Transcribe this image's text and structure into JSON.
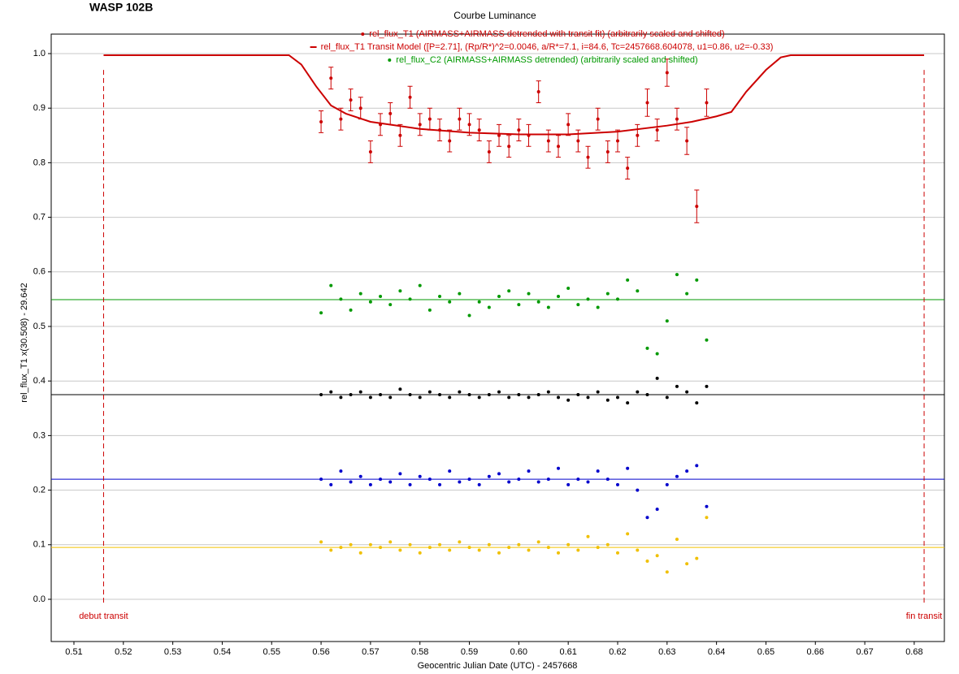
{
  "chart_data": {
    "type": "scatter",
    "title": "WASP 102B",
    "subtitle": "Courbe Luminance",
    "x_label": "Geocentric Julian Date (UTC) - 2457668",
    "y_label": "rel_flux_T1 x(30.508) - 29.642",
    "xlim": [
      0.5054,
      0.6861
    ],
    "ylim": [
      -0.0774,
      1.0357
    ],
    "xticks": [
      0.51,
      0.52,
      0.53,
      0.54,
      0.55,
      0.56,
      0.57,
      0.58,
      0.59,
      {
        "value": 0.6,
        "label": "0.60"
      },
      0.61,
      0.62,
      0.63,
      0.64,
      0.65,
      0.66,
      0.67,
      0.68
    ],
    "yticks": [
      {
        "value": 0,
        "label": "0.0"
      },
      0.1,
      0.2,
      0.3,
      0.4,
      0.5,
      0.6,
      0.7,
      0.8,
      0.9,
      {
        "value": 1,
        "label": "1.0"
      }
    ],
    "grid": true,
    "legend": "top",
    "x": [
      0.56,
      0.562,
      0.564,
      0.566,
      0.568,
      0.57,
      0.572,
      0.574,
      0.576,
      0.578,
      0.58,
      0.582,
      0.584,
      0.586,
      0.588,
      0.59,
      0.592,
      0.594,
      0.596,
      0.598,
      0.6,
      0.602,
      0.604,
      0.606,
      0.608,
      0.61,
      0.612,
      0.614,
      0.616,
      0.618,
      0.62,
      0.622,
      0.624,
      0.626,
      0.628,
      0.63,
      0.632,
      0.634,
      0.636,
      0.638
    ],
    "series": [
      {
        "name": "rel_flux_T1 (AIRMASS+AIRMASS detrended with transit fit) (arbitrarily scaled and shifted)",
        "color": "#cc0000",
        "style": "errorbar",
        "values": [
          0.875,
          0.955,
          0.88,
          0.915,
          0.9,
          0.82,
          0.87,
          0.89,
          0.85,
          0.92,
          0.87,
          0.88,
          0.86,
          0.84,
          0.88,
          0.87,
          0.86,
          0.82,
          0.85,
          0.83,
          0.86,
          0.85,
          0.93,
          0.84,
          0.83,
          0.87,
          0.84,
          0.81,
          0.88,
          0.82,
          0.84,
          0.79,
          0.85,
          0.91,
          0.86,
          0.965,
          0.88,
          0.84,
          0.72,
          0.91
        ],
        "errors": [
          0.02,
          0.02,
          0.02,
          0.02,
          0.02,
          0.02,
          0.02,
          0.02,
          0.02,
          0.02,
          0.02,
          0.02,
          0.02,
          0.02,
          0.02,
          0.02,
          0.02,
          0.02,
          0.02,
          0.02,
          0.02,
          0.02,
          0.02,
          0.02,
          0.02,
          0.02,
          0.02,
          0.02,
          0.02,
          0.02,
          0.02,
          0.02,
          0.02,
          0.025,
          0.02,
          0.025,
          0.02,
          0.025,
          0.03,
          0.025
        ]
      },
      {
        "name": "rel_flux_T1 Transit Model ([P=2.71], (Rp/R*)^2=0.0046, a/R*=7.1, i=84.6, Tc=2457668.604078, u1=0.86, u2=-0.33)",
        "color": "#cc0000",
        "style": "line",
        "x": [
          0.516,
          0.5535,
          0.556,
          0.559,
          0.562,
          0.565,
          0.57,
          0.58,
          0.59,
          0.6,
          0.61,
          0.62,
          0.63,
          0.635,
          0.64,
          0.643,
          0.646,
          0.65,
          0.653,
          0.655,
          0.682
        ],
        "values": [
          0.997,
          0.997,
          0.98,
          0.94,
          0.905,
          0.89,
          0.875,
          0.862,
          0.855,
          0.852,
          0.852,
          0.857,
          0.868,
          0.875,
          0.885,
          0.893,
          0.93,
          0.97,
          0.993,
          0.997,
          0.997
        ]
      },
      {
        "name": "rel_flux_C2 (AIRMASS+AIRMASS detrended) (arbitrarily scaled and shifted)",
        "color": "#009900",
        "style": "point",
        "values": [
          0.525,
          0.575,
          0.55,
          0.53,
          0.56,
          0.545,
          0.555,
          0.54,
          0.565,
          0.55,
          0.575,
          0.53,
          0.555,
          0.545,
          0.56,
          0.52,
          0.545,
          0.535,
          0.555,
          0.565,
          0.54,
          0.56,
          0.545,
          0.535,
          0.555,
          0.57,
          0.54,
          0.55,
          0.535,
          0.56,
          0.55,
          0.585,
          0.565,
          0.46,
          0.45,
          0.51,
          0.595,
          0.56,
          0.585,
          0.475
        ]
      },
      {
        "color": "#000000",
        "style": "point",
        "values": [
          0.375,
          0.38,
          0.37,
          0.375,
          0.38,
          0.37,
          0.375,
          0.37,
          0.385,
          0.375,
          0.37,
          0.38,
          0.375,
          0.37,
          0.38,
          0.375,
          0.37,
          0.375,
          0.38,
          0.37,
          0.375,
          0.37,
          0.375,
          0.38,
          0.37,
          0.365,
          0.375,
          0.37,
          0.38,
          0.365,
          0.37,
          0.36,
          0.38,
          0.375,
          0.405,
          0.37,
          0.39,
          0.38,
          0.36,
          0.39
        ]
      },
      {
        "color": "#0000cc",
        "style": "point",
        "values": [
          0.22,
          0.21,
          0.235,
          0.215,
          0.225,
          0.21,
          0.22,
          0.215,
          0.23,
          0.21,
          0.225,
          0.22,
          0.21,
          0.235,
          0.215,
          0.22,
          0.21,
          0.225,
          0.23,
          0.215,
          0.22,
          0.235,
          0.215,
          0.22,
          0.24,
          0.21,
          0.22,
          0.215,
          0.235,
          0.22,
          0.21,
          0.24,
          0.2,
          0.15,
          0.165,
          0.21,
          0.225,
          0.235,
          0.245,
          0.17
        ]
      },
      {
        "color": "#f0c000",
        "style": "point",
        "values": [
          0.105,
          0.09,
          0.095,
          0.1,
          0.085,
          0.1,
          0.095,
          0.105,
          0.09,
          0.1,
          0.085,
          0.095,
          0.1,
          0.09,
          0.105,
          0.095,
          0.09,
          0.1,
          0.085,
          0.095,
          0.1,
          0.09,
          0.105,
          0.095,
          0.085,
          0.1,
          0.09,
          0.115,
          0.095,
          0.1,
          0.085,
          0.12,
          0.09,
          0.07,
          0.08,
          0.05,
          0.11,
          0.065,
          0.075,
          0.15
        ]
      }
    ],
    "reference_lines": [
      {
        "value": 0.549,
        "color": "#009900"
      },
      {
        "value": 0.375,
        "color": "#000000"
      },
      {
        "value": 0.22,
        "color": "#0000cc"
      },
      {
        "value": 0.095,
        "color": "#f0c000"
      }
    ],
    "markers": [
      {
        "x": 0.516,
        "label": "debut transit",
        "color": "#cc0000"
      },
      {
        "x": 0.682,
        "label": "fin transit",
        "color": "#cc0000"
      }
    ]
  }
}
